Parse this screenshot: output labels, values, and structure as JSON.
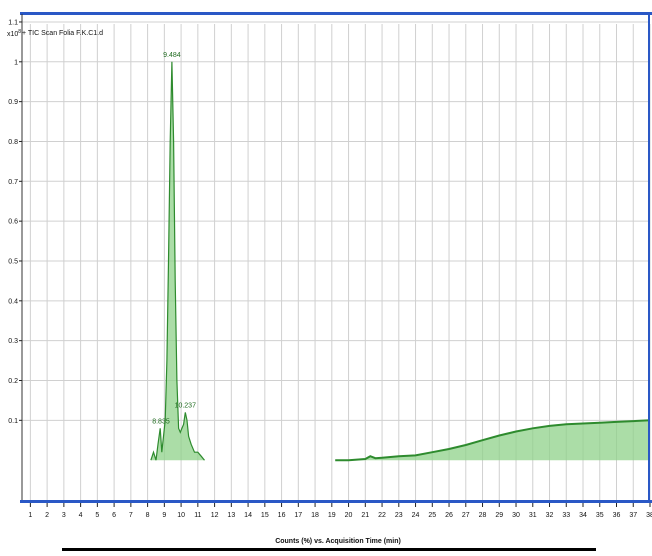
{
  "trace_label": "+ TIC Scan Folia F.K.C1.d",
  "y_exponent": "x10",
  "y_exponent_power": "8",
  "colors": {
    "frame": "#2a58c6",
    "trace_fill": "#8fd18a",
    "trace_line": "#2e8b2e",
    "grid": "#d0d0d0",
    "label": "#1f6b1f",
    "bottom_bar": "#000000"
  },
  "chart_data": {
    "type": "line",
    "title": "+ TIC Scan Folia F.K.C1.d",
    "xlabel": "Counts (%) vs. Acquisition Time (min)",
    "ylabel": "",
    "xlim": [
      0.5,
      38
    ],
    "ylim": [
      -0.1,
      1.12
    ],
    "x_ticks": [
      1,
      2,
      3,
      4,
      5,
      6,
      7,
      8,
      9,
      10,
      11,
      12,
      13,
      14,
      15,
      16,
      17,
      18,
      19,
      20,
      21,
      22,
      23,
      24,
      25,
      26,
      27,
      28,
      29,
      30,
      31,
      32,
      33,
      34,
      35,
      36,
      37,
      38
    ],
    "x_tick_labels": [
      "1",
      "2",
      "3",
      "4",
      "5",
      "6",
      "7",
      "8",
      "9",
      "10",
      "11",
      "12",
      "13",
      "14",
      "15",
      "16",
      "17",
      "18",
      "19",
      "20",
      "21",
      "22",
      "23",
      "24",
      "25",
      "26",
      "27",
      "28",
      "29",
      "30",
      "31",
      "32",
      "33",
      "34",
      "35",
      "36",
      "37",
      "38"
    ],
    "y_ticks": [
      0.1,
      0.2,
      0.3,
      0.4,
      0.5,
      0.6,
      0.7,
      0.8,
      0.9,
      1.0,
      1.1
    ],
    "y_tick_labels": [
      "0.1",
      "0.2",
      "0.3",
      "0.4",
      "0.5",
      "0.6",
      "0.7",
      "0.8",
      "0.9",
      "1",
      "1.1"
    ],
    "grid": true,
    "series": [
      {
        "x": [
          8.2,
          8.35,
          8.5,
          8.62,
          8.75,
          8.85,
          8.95,
          9.05,
          9.15,
          9.25,
          9.35,
          9.45,
          9.55,
          9.65,
          9.75,
          9.85,
          9.95,
          10.05,
          10.15,
          10.25,
          10.35,
          10.45,
          10.6,
          10.8,
          11.0,
          11.2,
          11.4
        ],
        "y": [
          0.0,
          0.02,
          0.0,
          0.04,
          0.08,
          0.02,
          0.06,
          0.1,
          0.25,
          0.5,
          0.8,
          1.0,
          0.8,
          0.45,
          0.2,
          0.08,
          0.07,
          0.08,
          0.09,
          0.12,
          0.1,
          0.06,
          0.04,
          0.02,
          0.02,
          0.01,
          0.0
        ]
      },
      {
        "x": [
          19.2,
          20,
          21,
          21.3,
          21.6,
          22,
          23,
          24,
          25,
          26,
          27,
          28,
          29,
          30,
          31,
          32,
          33,
          34,
          35,
          36,
          37,
          38
        ],
        "y": [
          0.0,
          0.0,
          0.003,
          0.01,
          0.005,
          0.006,
          0.01,
          0.012,
          0.02,
          0.028,
          0.038,
          0.05,
          0.062,
          0.072,
          0.08,
          0.086,
          0.09,
          0.092,
          0.094,
          0.096,
          0.098,
          0.1
        ]
      }
    ],
    "annotations": [
      {
        "x": 9.45,
        "y": 1.0,
        "text": "9.484"
      },
      {
        "x": 8.8,
        "y": 0.08,
        "text": "8.835"
      },
      {
        "x": 10.25,
        "y": 0.12,
        "text": "10.237"
      }
    ]
  }
}
